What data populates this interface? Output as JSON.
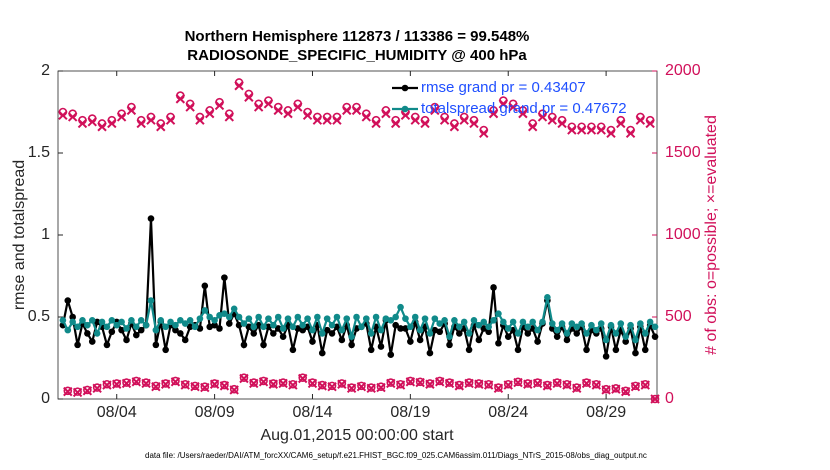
{
  "chart_data": {
    "type": "line",
    "title": "Northern Hemisphere 112873 / 113386 = 99.548%",
    "subtitle": "RADIOSONDE_SPECIFIC_HUMIDITY @ 400 hPa",
    "xlabel": "Aug.01,2015 00:00:00 start",
    "ylabel": "rmse and totalspread",
    "y2label": "# of obs: o=possible; ×=evaluated",
    "footnote": "data file: /Users/raeder/DAI/ATM_forcXX/CAM6_setup/f.e21.FHIST_BGC.f09_025.CAM6assim.011/Diags_NTrS_2015-08/obs_diag_output.nc",
    "xlim": [
      0,
      30.6
    ],
    "xticks": [
      {
        "value": 3,
        "label": "08/04"
      },
      {
        "value": 8,
        "label": "08/09"
      },
      {
        "value": 13,
        "label": "08/14"
      },
      {
        "value": 18,
        "label": "08/19"
      },
      {
        "value": 23,
        "label": "08/24"
      },
      {
        "value": 28,
        "label": "08/29"
      }
    ],
    "ylim": [
      0,
      2
    ],
    "yticks": [
      0,
      0.5,
      1,
      1.5,
      2
    ],
    "y2lim": [
      0,
      2000
    ],
    "y2ticks": [
      0,
      500,
      1000,
      1500,
      2000
    ],
    "legend": "top-right",
    "x": [
      0.25,
      0.5,
      0.75,
      1,
      1.25,
      1.5,
      1.75,
      2,
      2.25,
      2.5,
      2.75,
      3,
      3.25,
      3.5,
      3.75,
      4,
      4.25,
      4.5,
      4.75,
      5,
      5.25,
      5.5,
      5.75,
      6,
      6.25,
      6.5,
      6.75,
      7,
      7.25,
      7.5,
      7.75,
      8,
      8.25,
      8.5,
      8.75,
      9,
      9.25,
      9.5,
      9.75,
      10,
      10.25,
      10.5,
      10.75,
      11,
      11.25,
      11.5,
      11.75,
      12,
      12.25,
      12.5,
      12.75,
      13,
      13.25,
      13.5,
      13.75,
      14,
      14.25,
      14.5,
      14.75,
      15,
      15.25,
      15.5,
      15.75,
      16,
      16.25,
      16.5,
      16.75,
      17,
      17.25,
      17.5,
      17.75,
      18,
      18.25,
      18.5,
      18.75,
      19,
      19.25,
      19.5,
      19.75,
      20,
      20.25,
      20.5,
      20.75,
      21,
      21.25,
      21.5,
      21.75,
      22,
      22.25,
      22.5,
      22.75,
      23,
      23.25,
      23.5,
      23.75,
      24,
      24.25,
      24.5,
      24.75,
      25,
      25.25,
      25.5,
      25.75,
      26,
      26.25,
      26.5,
      26.75,
      27,
      27.25,
      27.5,
      27.75,
      28,
      28.25,
      28.5,
      28.75,
      29,
      29.25,
      29.5,
      29.75,
      30,
      30.25,
      30.5
    ],
    "series": [
      {
        "name": "rmse grand pr = 0.43407",
        "color": "#000000",
        "marker": "dot",
        "line": true,
        "axis": "y",
        "values": [
          0.45,
          0.6,
          0.5,
          0.33,
          0.46,
          0.4,
          0.35,
          0.47,
          0.44,
          0.33,
          0.41,
          0.47,
          0.42,
          0.36,
          0.46,
          0.39,
          0.42,
          0.45,
          1.1,
          0.33,
          0.47,
          0.3,
          0.45,
          0.42,
          0.4,
          0.36,
          0.44,
          0.45,
          0.43,
          0.69,
          0.44,
          0.45,
          0.43,
          0.74,
          0.46,
          0.52,
          0.45,
          0.33,
          0.44,
          0.4,
          0.45,
          0.33,
          0.44,
          0.4,
          0.43,
          0.38,
          0.45,
          0.3,
          0.43,
          0.42,
          0.44,
          0.35,
          0.45,
          0.28,
          0.42,
          0.4,
          0.44,
          0.36,
          0.45,
          0.33,
          0.43,
          0.44,
          0.46,
          0.3,
          0.44,
          0.32,
          0.48,
          0.27,
          0.45,
          0.43,
          0.43,
          0.35,
          0.47,
          0.36,
          0.44,
          0.28,
          0.42,
          0.41,
          0.46,
          0.33,
          0.44,
          0.4,
          0.43,
          0.3,
          0.45,
          0.36,
          0.43,
          0.41,
          0.68,
          0.34,
          0.45,
          0.38,
          0.42,
          0.3,
          0.44,
          0.4,
          0.43,
          0.35,
          0.46,
          0.6,
          0.43,
          0.38,
          0.44,
          0.36,
          0.43,
          0.4,
          0.44,
          0.3,
          0.42,
          0.4,
          0.43,
          0.26,
          0.44,
          0.3,
          0.42,
          0.35,
          0.43,
          0.28,
          0.44,
          0.3,
          0.45,
          0.38
        ]
      },
      {
        "name": "totalspread grand pr = 0.47672",
        "color": "#108a8a",
        "marker": "dot",
        "line": true,
        "axis": "y",
        "values": [
          0.48,
          0.42,
          0.47,
          0.44,
          0.48,
          0.45,
          0.48,
          0.4,
          0.47,
          0.44,
          0.48,
          0.45,
          0.47,
          0.43,
          0.48,
          0.44,
          0.48,
          0.45,
          0.6,
          0.42,
          0.48,
          0.44,
          0.47,
          0.45,
          0.48,
          0.46,
          0.48,
          0.44,
          0.49,
          0.54,
          0.5,
          0.48,
          0.51,
          0.52,
          0.5,
          0.55,
          0.5,
          0.46,
          0.49,
          0.44,
          0.5,
          0.44,
          0.49,
          0.45,
          0.5,
          0.43,
          0.49,
          0.44,
          0.5,
          0.45,
          0.49,
          0.42,
          0.5,
          0.4,
          0.49,
          0.45,
          0.5,
          0.42,
          0.49,
          0.38,
          0.5,
          0.44,
          0.49,
          0.4,
          0.5,
          0.42,
          0.49,
          0.48,
          0.5,
          0.56,
          0.49,
          0.44,
          0.5,
          0.42,
          0.49,
          0.4,
          0.49,
          0.46,
          0.48,
          0.38,
          0.48,
          0.44,
          0.47,
          0.4,
          0.48,
          0.45,
          0.47,
          0.44,
          0.48,
          0.52,
          0.47,
          0.43,
          0.47,
          0.4,
          0.47,
          0.44,
          0.47,
          0.42,
          0.47,
          0.62,
          0.46,
          0.42,
          0.46,
          0.4,
          0.46,
          0.44,
          0.46,
          0.4,
          0.45,
          0.42,
          0.46,
          0.36,
          0.45,
          0.4,
          0.46,
          0.38,
          0.45,
          0.36,
          0.46,
          0.4,
          0.47,
          0.44
        ]
      },
      {
        "color": "#d1105a",
        "marker": "o",
        "line": false,
        "axis": "y2",
        "values": [
          1750,
          50,
          1740,
          45,
          1700,
          55,
          1710,
          70,
          1680,
          90,
          1700,
          95,
          1740,
          100,
          1780,
          110,
          1700,
          100,
          1720,
          80,
          1680,
          95,
          1720,
          110,
          1850,
          90,
          1800,
          80,
          1720,
          75,
          1760,
          95,
          1810,
          85,
          1740,
          60,
          1930,
          130,
          1860,
          100,
          1800,
          110,
          1820,
          95,
          1780,
          100,
          1760,
          90,
          1800,
          130,
          1750,
          100,
          1720,
          85,
          1720,
          80,
          1720,
          95,
          1780,
          70,
          1780,
          80,
          1740,
          70,
          1700,
          75,
          1760,
          100,
          1700,
          90,
          1750,
          110,
          1720,
          105,
          1700,
          95,
          1780,
          110,
          1720,
          100,
          1680,
          85,
          1720,
          100,
          1700,
          95,
          1640,
          90,
          1760,
          70,
          1820,
          90,
          1800,
          105,
          1760,
          95,
          1680,
          100,
          1740,
          85,
          1720,
          100,
          1700,
          90,
          1660,
          70,
          1660,
          100,
          1660,
          90,
          1660,
          60,
          1640,
          65,
          1700,
          50,
          1640,
          80,
          1720,
          90,
          1700,
          0
        ]
      },
      {
        "color": "#d1105a",
        "marker": "x",
        "line": false,
        "axis": "y2",
        "values": [
          1730,
          45,
          1720,
          40,
          1680,
          50,
          1690,
          65,
          1660,
          85,
          1680,
          90,
          1720,
          95,
          1760,
          105,
          1680,
          95,
          1700,
          75,
          1660,
          90,
          1700,
          105,
          1830,
          85,
          1780,
          75,
          1700,
          70,
          1740,
          90,
          1790,
          80,
          1720,
          55,
          1910,
          125,
          1840,
          95,
          1780,
          105,
          1800,
          90,
          1760,
          95,
          1740,
          85,
          1780,
          125,
          1730,
          95,
          1700,
          80,
          1700,
          75,
          1700,
          90,
          1760,
          65,
          1760,
          75,
          1720,
          65,
          1680,
          70,
          1740,
          95,
          1680,
          85,
          1730,
          105,
          1700,
          100,
          1680,
          90,
          1760,
          105,
          1700,
          95,
          1660,
          80,
          1700,
          95,
          1680,
          90,
          1620,
          85,
          1740,
          65,
          1800,
          85,
          1780,
          100,
          1740,
          90,
          1660,
          95,
          1720,
          80,
          1700,
          95,
          1680,
          85,
          1640,
          65,
          1640,
          95,
          1640,
          85,
          1640,
          55,
          1620,
          60,
          1680,
          45,
          1620,
          75,
          1700,
          85,
          1680,
          0
        ]
      }
    ]
  }
}
